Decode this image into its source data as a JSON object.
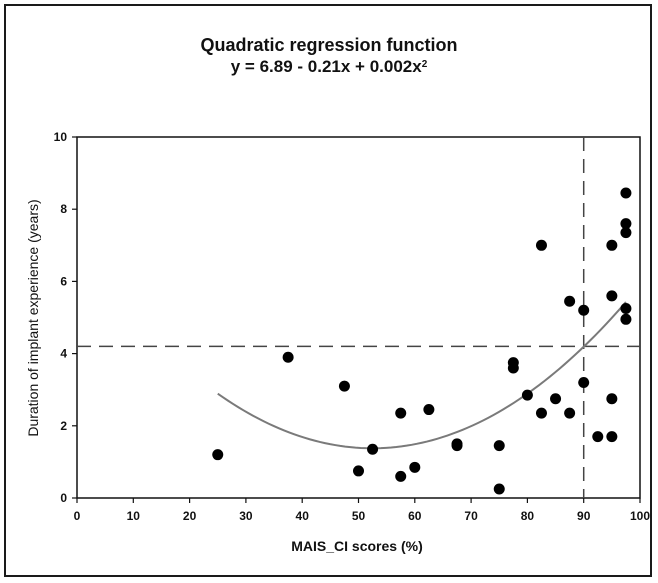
{
  "chart_data": {
    "type": "scatter",
    "title": "Quadratic regression function",
    "subtitle_main": "y = 6.89 - 0.21x + 0.002x",
    "subtitle_sup": "2",
    "xlabel": "MAIS_CI scores (%)",
    "ylabel": "Duration of implant experience (years)",
    "xlim": [
      0,
      100
    ],
    "ylim": [
      0,
      10
    ],
    "x_ticks": [
      0,
      10,
      20,
      30,
      40,
      50,
      60,
      70,
      80,
      90,
      100
    ],
    "y_ticks": [
      0,
      2,
      4,
      6,
      8,
      10
    ],
    "grid": false,
    "reference_lines": {
      "vertical_x": 90,
      "horizontal_y": 4.2
    },
    "fit_curve": {
      "type": "quadratic",
      "a": 6.89,
      "b": -0.21,
      "c": 0.002,
      "x_range": [
        25,
        97.5
      ],
      "color": "#7a7a7a"
    },
    "point_color": "#000000",
    "series": [
      {
        "points": [
          {
            "x": 25,
            "y": 1.2
          },
          {
            "x": 37.5,
            "y": 3.9
          },
          {
            "x": 47.5,
            "y": 3.1
          },
          {
            "x": 50,
            "y": 0.75
          },
          {
            "x": 52.5,
            "y": 1.35
          },
          {
            "x": 57.5,
            "y": 2.35
          },
          {
            "x": 57.5,
            "y": 0.6
          },
          {
            "x": 60,
            "y": 0.85
          },
          {
            "x": 62.5,
            "y": 2.45
          },
          {
            "x": 67.5,
            "y": 1.5
          },
          {
            "x": 67.5,
            "y": 1.45
          },
          {
            "x": 75,
            "y": 1.45
          },
          {
            "x": 75,
            "y": 0.25
          },
          {
            "x": 77.5,
            "y": 3.75
          },
          {
            "x": 77.5,
            "y": 3.6
          },
          {
            "x": 80,
            "y": 2.85
          },
          {
            "x": 82.5,
            "y": 7.0
          },
          {
            "x": 82.5,
            "y": 2.35
          },
          {
            "x": 85,
            "y": 2.75
          },
          {
            "x": 87.5,
            "y": 5.45
          },
          {
            "x": 87.5,
            "y": 2.35
          },
          {
            "x": 90,
            "y": 5.2
          },
          {
            "x": 90,
            "y": 3.2
          },
          {
            "x": 92.5,
            "y": 1.7
          },
          {
            "x": 95,
            "y": 7.0
          },
          {
            "x": 95,
            "y": 5.6
          },
          {
            "x": 95,
            "y": 2.75
          },
          {
            "x": 95,
            "y": 1.7
          },
          {
            "x": 97.5,
            "y": 8.45
          },
          {
            "x": 97.5,
            "y": 7.6
          },
          {
            "x": 97.5,
            "y": 7.35
          },
          {
            "x": 97.5,
            "y": 5.25
          },
          {
            "x": 97.5,
            "y": 4.95
          }
        ]
      }
    ]
  }
}
